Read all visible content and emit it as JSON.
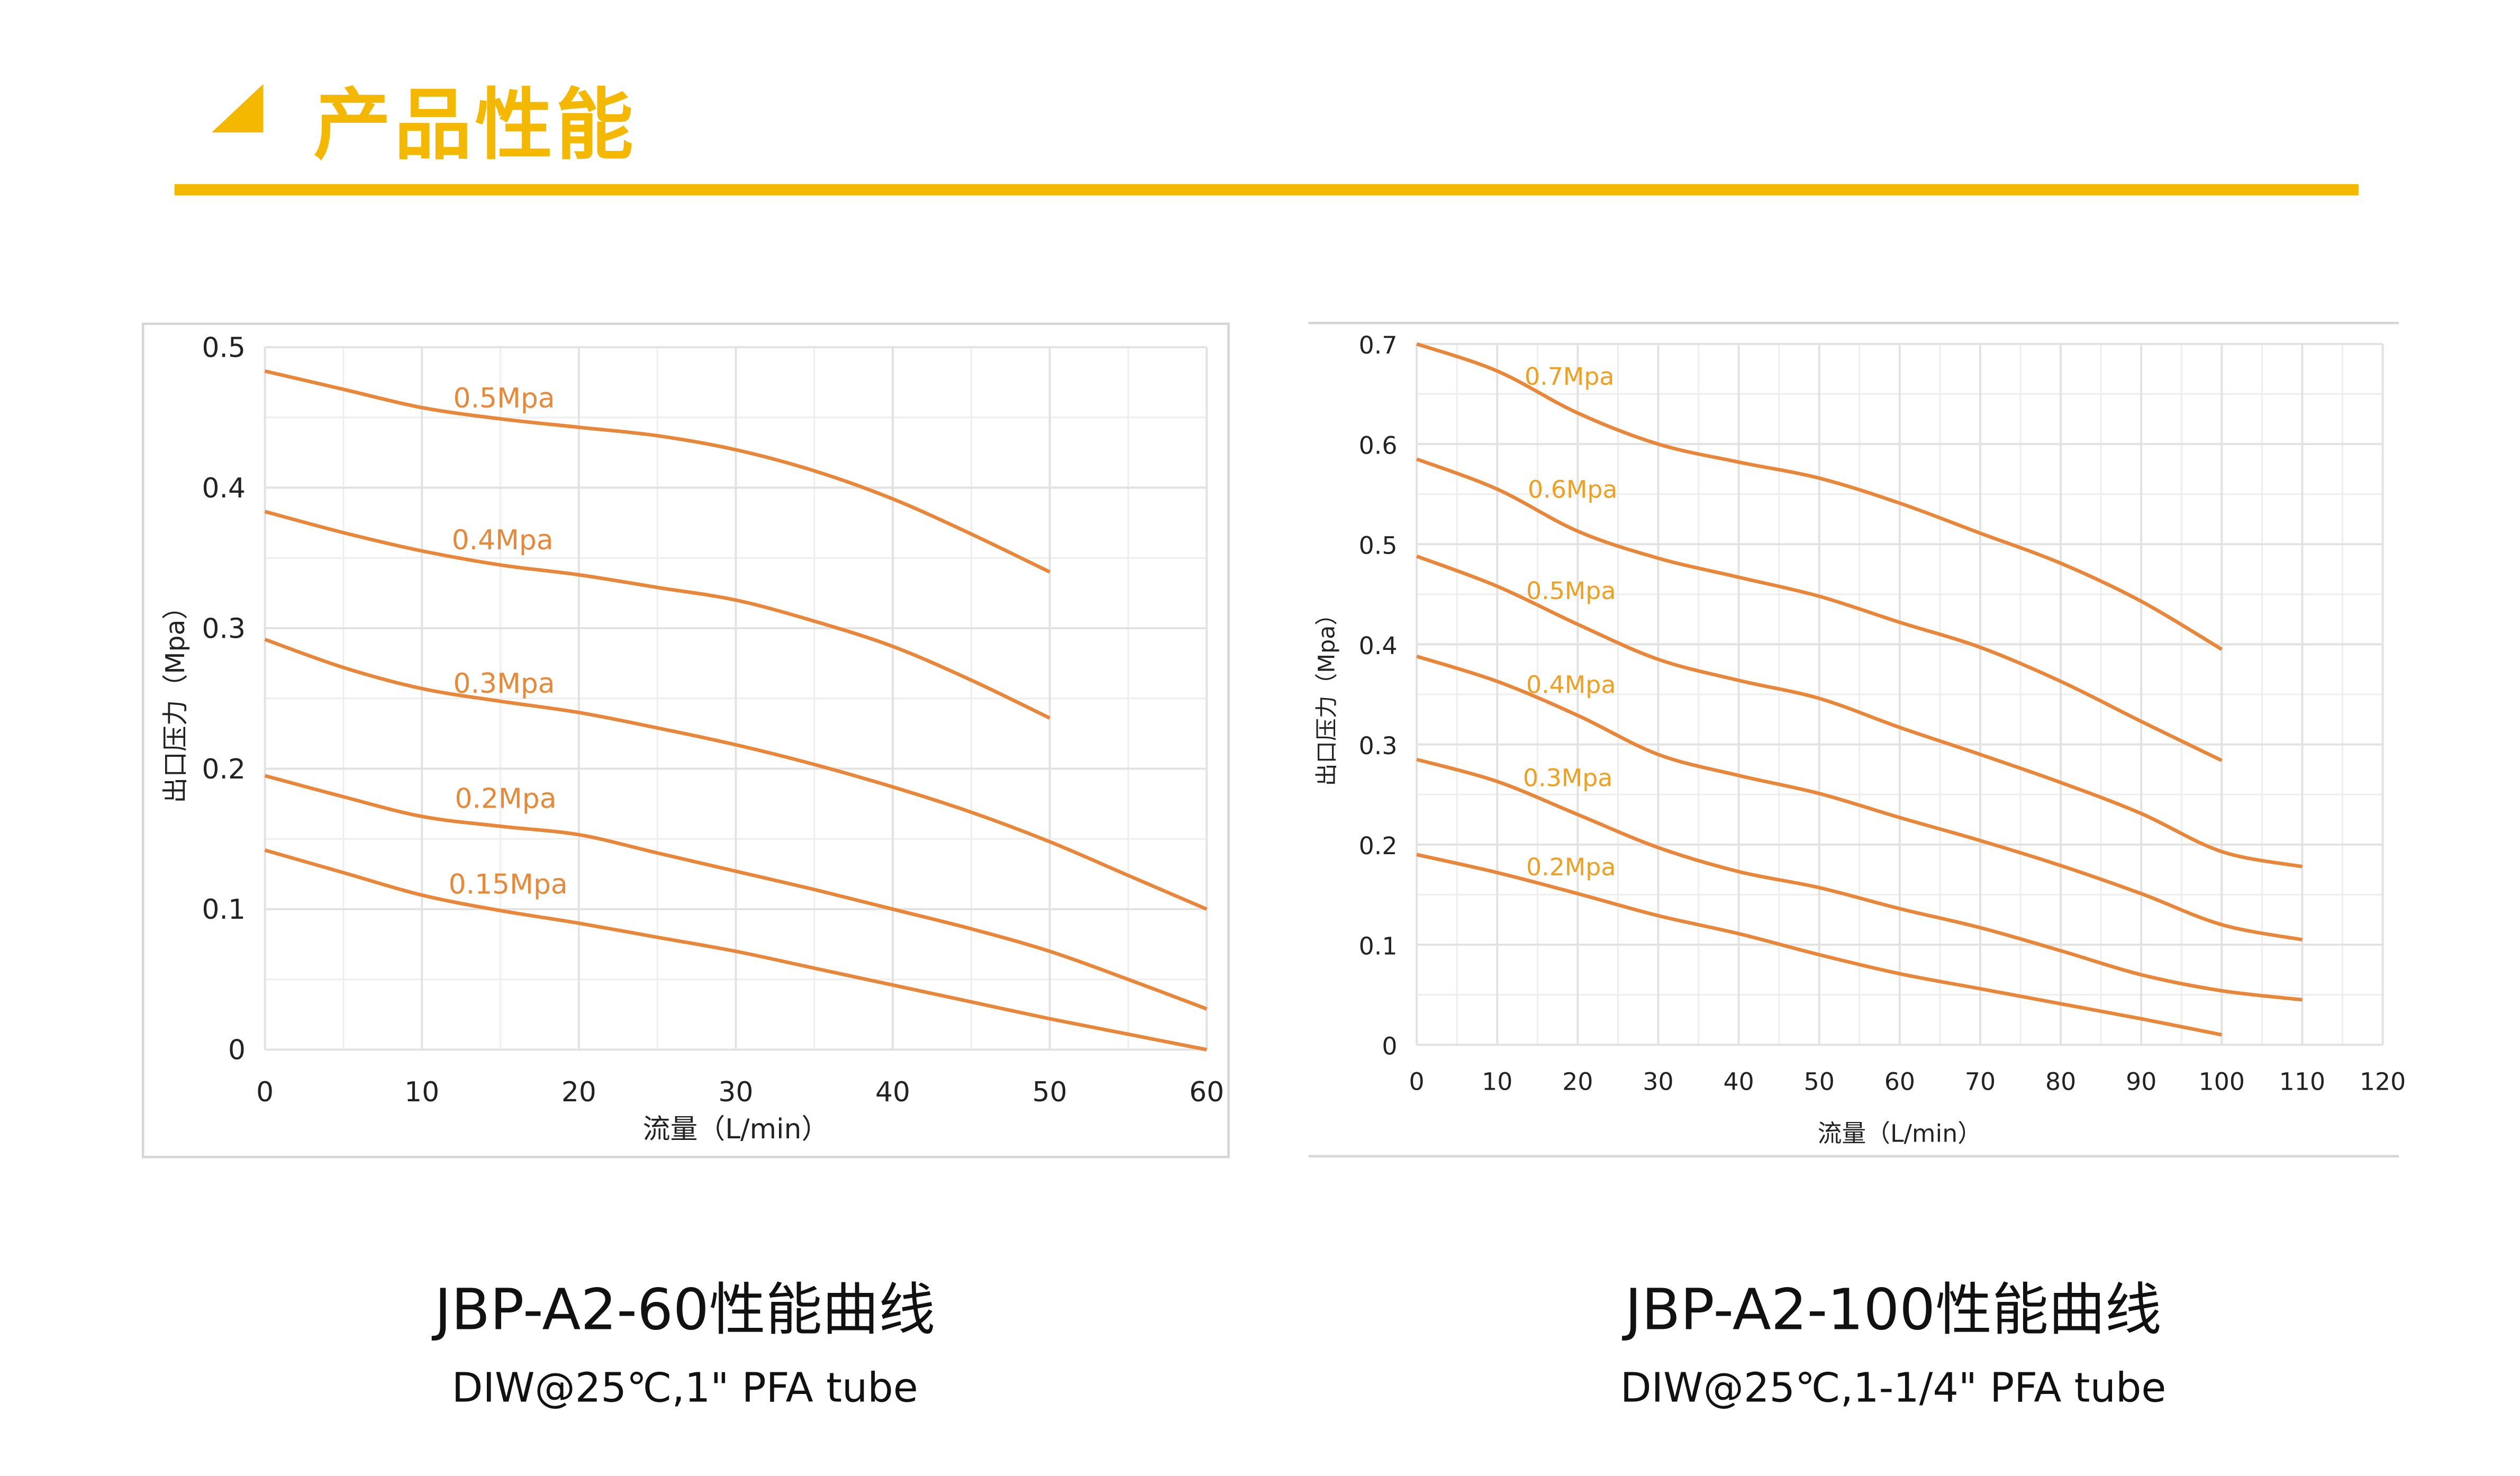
{
  "header": {
    "title": "产品性能"
  },
  "colors": {
    "accent": "#f5b800",
    "line": "#e8873a",
    "label1": "#e8893a",
    "label2": "#f0a020",
    "grid": "#e2e2e2"
  },
  "captions": [
    {
      "title": "JBP-A2-60性能曲线",
      "subtitle": "DIW@25℃,1\" PFA tube"
    },
    {
      "title": "JBP-A2-100性能曲线",
      "subtitle": "DIW@25℃,1-1/4\" PFA tube"
    }
  ],
  "chart_data": [
    {
      "type": "line",
      "title": "JBP-A2-60性能曲线",
      "xlabel": "流量（L/min）",
      "ylabel": "出口压力（Mpa）",
      "xlim": [
        0,
        60
      ],
      "ylim": [
        0,
        0.5
      ],
      "xticks": [
        0,
        10,
        20,
        30,
        40,
        50,
        60
      ],
      "yticks": [
        0,
        0.1,
        0.2,
        0.3,
        0.4,
        0.5
      ],
      "xtick_labels": [
        "0",
        "10",
        "20",
        "30",
        "40",
        "50",
        "60"
      ],
      "ytick_labels": [
        "0",
        "0.1",
        "0.2",
        "0.3",
        "0.4",
        "0.5"
      ],
      "grid": true,
      "series": [
        {
          "name": "0.5Mpa",
          "label_at": [
            12,
            0.464
          ],
          "x": [
            0,
            5,
            10,
            15,
            20,
            25,
            30,
            35,
            40,
            45,
            50
          ],
          "y": [
            0.483,
            0.47,
            0.457,
            0.449,
            0.443,
            0.437,
            0.427,
            0.412,
            0.392,
            0.367,
            0.34
          ]
        },
        {
          "name": "0.4Mpa",
          "label_at": [
            11.9,
            0.363
          ],
          "x": [
            0,
            5,
            10,
            15,
            20,
            25,
            30,
            35,
            40,
            45,
            50
          ],
          "y": [
            0.383,
            0.368,
            0.355,
            0.345,
            0.338,
            0.329,
            0.32,
            0.305,
            0.287,
            0.263,
            0.236
          ]
        },
        {
          "name": "0.3Mpa",
          "label_at": [
            12,
            0.261
          ],
          "x": [
            0,
            5,
            10,
            15,
            20,
            25,
            30,
            35,
            40,
            45,
            50,
            55,
            60
          ],
          "y": [
            0.292,
            0.272,
            0.257,
            0.248,
            0.24,
            0.229,
            0.217,
            0.203,
            0.187,
            0.169,
            0.148,
            0.124,
            0.1
          ]
        },
        {
          "name": "0.2Mpa",
          "label_at": [
            12.1,
            0.179
          ],
          "x": [
            0,
            5,
            10,
            15,
            20,
            25,
            30,
            35,
            40,
            45,
            50,
            55,
            60
          ],
          "y": [
            0.195,
            0.18,
            0.166,
            0.159,
            0.153,
            0.14,
            0.127,
            0.114,
            0.1,
            0.086,
            0.07,
            0.05,
            0.029
          ]
        },
        {
          "name": "0.15Mpa",
          "label_at": [
            11.7,
            0.118
          ],
          "x": [
            0,
            5,
            10,
            15,
            20,
            25,
            30,
            35,
            40,
            45,
            50,
            55,
            60
          ],
          "y": [
            0.142,
            0.126,
            0.11,
            0.099,
            0.09,
            0.08,
            0.07,
            0.058,
            0.046,
            0.034,
            0.022,
            0.011,
            0
          ]
        }
      ]
    },
    {
      "type": "line",
      "title": "JBP-A2-100性能曲线",
      "xlabel": "流量（L/min）",
      "ylabel": "出口压力（Mpa）",
      "xlim": [
        0,
        120
      ],
      "ylim": [
        0,
        0.7
      ],
      "xticks": [
        0,
        10,
        20,
        30,
        40,
        50,
        60,
        70,
        80,
        90,
        100,
        110,
        120
      ],
      "yticks": [
        0,
        0.1,
        0.2,
        0.3,
        0.4,
        0.5,
        0.6,
        0.7
      ],
      "xtick_labels": [
        "0",
        "10",
        "20",
        "30",
        "40",
        "50",
        "60",
        "70",
        "80",
        "90",
        "100",
        "110",
        "120"
      ],
      "ytick_labels": [
        "0",
        "0.1",
        "0.2",
        "0.3",
        "0.4",
        "0.5",
        "0.6",
        "0.7"
      ],
      "grid": true,
      "series": [
        {
          "name": "0.7Mpa",
          "label_at": [
            13.4,
            0.669
          ],
          "x": [
            0,
            10,
            20,
            30,
            40,
            50,
            60,
            70,
            80,
            90,
            100
          ],
          "y": [
            0.7,
            0.673,
            0.631,
            0.6,
            0.582,
            0.566,
            0.541,
            0.511,
            0.481,
            0.443,
            0.395
          ]
        },
        {
          "name": "0.6Mpa",
          "label_at": [
            13.8,
            0.556
          ],
          "x": [
            0,
            10,
            20,
            30,
            40,
            50,
            60,
            70,
            80,
            90,
            100
          ],
          "y": [
            0.585,
            0.555,
            0.513,
            0.486,
            0.467,
            0.448,
            0.422,
            0.397,
            0.363,
            0.323,
            0.284
          ]
        },
        {
          "name": "0.5Mpa",
          "label_at": [
            13.6,
            0.455
          ],
          "x": [
            0,
            10,
            20,
            30,
            40,
            50,
            60,
            70,
            80,
            90,
            100,
            110
          ],
          "y": [
            0.488,
            0.458,
            0.42,
            0.385,
            0.364,
            0.346,
            0.317,
            0.29,
            0.262,
            0.231,
            0.193,
            0.178
          ]
        },
        {
          "name": "0.4Mpa",
          "label_at": [
            13.6,
            0.361
          ],
          "x": [
            0,
            10,
            20,
            30,
            40,
            50,
            60,
            70,
            80,
            90,
            100,
            110
          ],
          "y": [
            0.388,
            0.363,
            0.329,
            0.29,
            0.269,
            0.251,
            0.227,
            0.204,
            0.179,
            0.151,
            0.12,
            0.105
          ]
        },
        {
          "name": "0.3Mpa",
          "label_at": [
            13.2,
            0.268
          ],
          "x": [
            0,
            10,
            20,
            30,
            40,
            50,
            60,
            70,
            80,
            90,
            100,
            110
          ],
          "y": [
            0.285,
            0.263,
            0.23,
            0.197,
            0.173,
            0.157,
            0.136,
            0.117,
            0.094,
            0.07,
            0.054,
            0.045
          ]
        },
        {
          "name": "0.2Mpa",
          "label_at": [
            13.6,
            0.179
          ],
          "x": [
            0,
            10,
            20,
            30,
            40,
            50,
            60,
            70,
            80,
            90,
            100
          ],
          "y": [
            0.19,
            0.172,
            0.151,
            0.129,
            0.111,
            0.09,
            0.071,
            0.056,
            0.041,
            0.026,
            0.01
          ]
        }
      ]
    }
  ]
}
